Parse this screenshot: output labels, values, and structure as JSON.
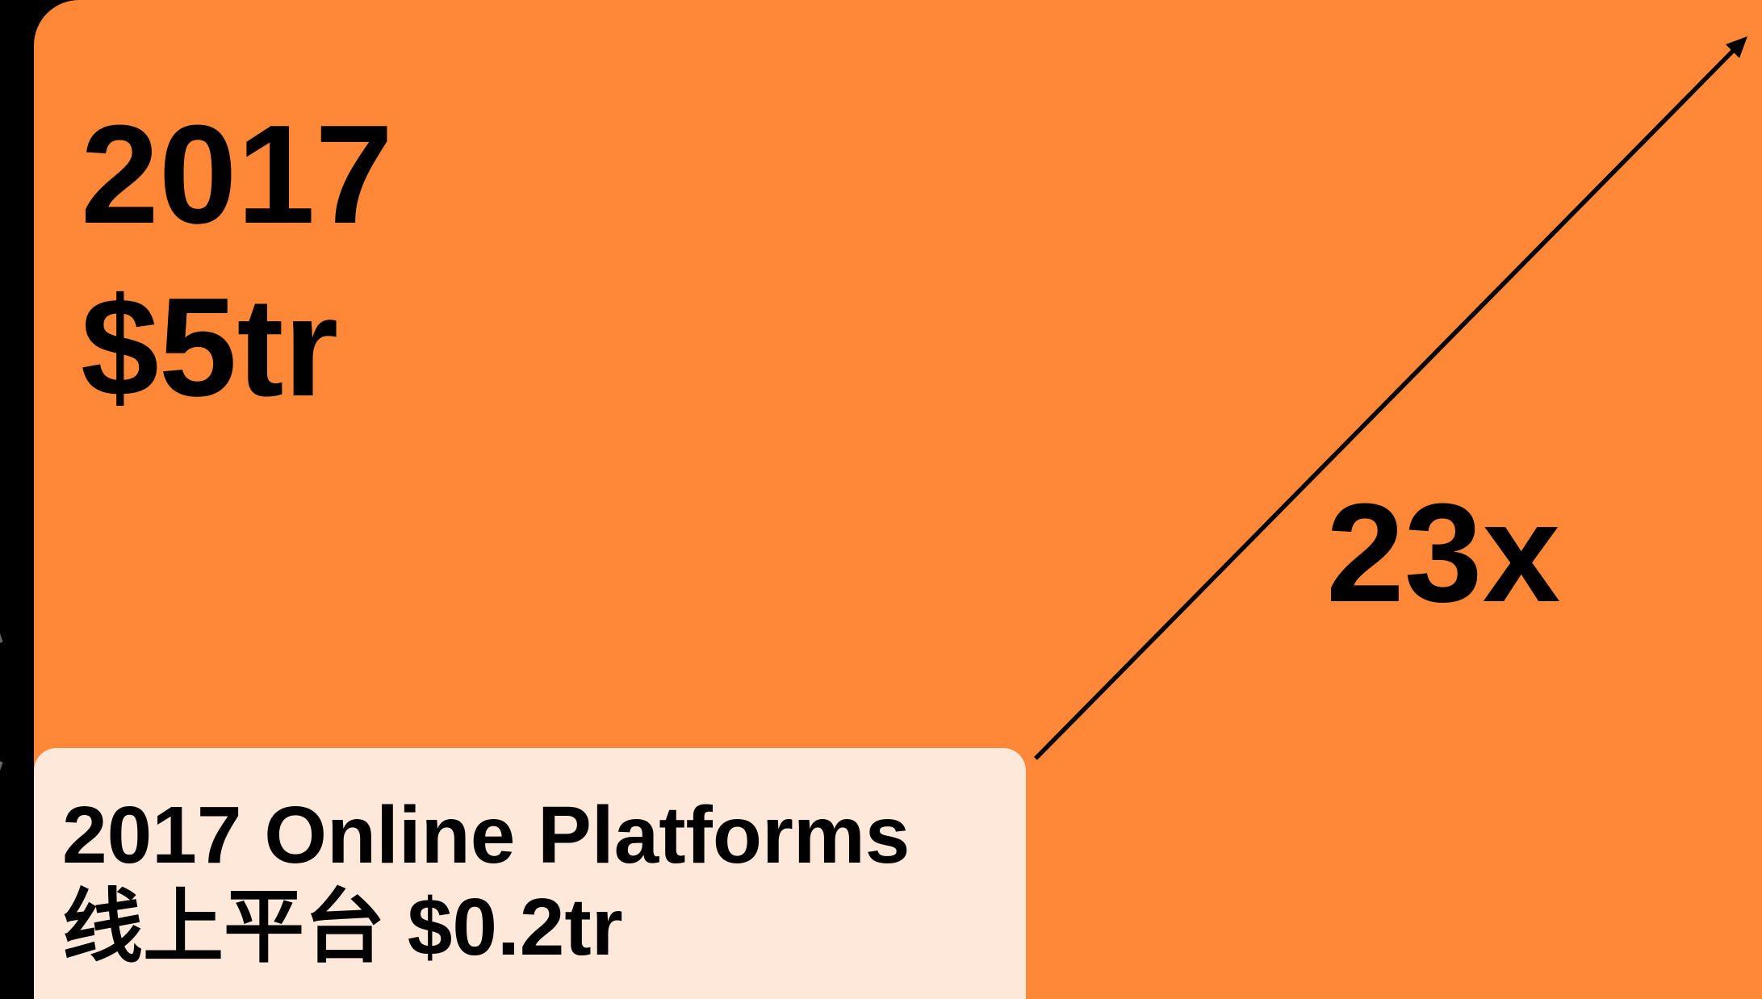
{
  "headline": {
    "year": "2017",
    "amount": "$5tr"
  },
  "multiplier": "23x",
  "callout": {
    "title": "2017 Online Platforms",
    "subtitle": "线上平台 $0.2tr"
  }
}
